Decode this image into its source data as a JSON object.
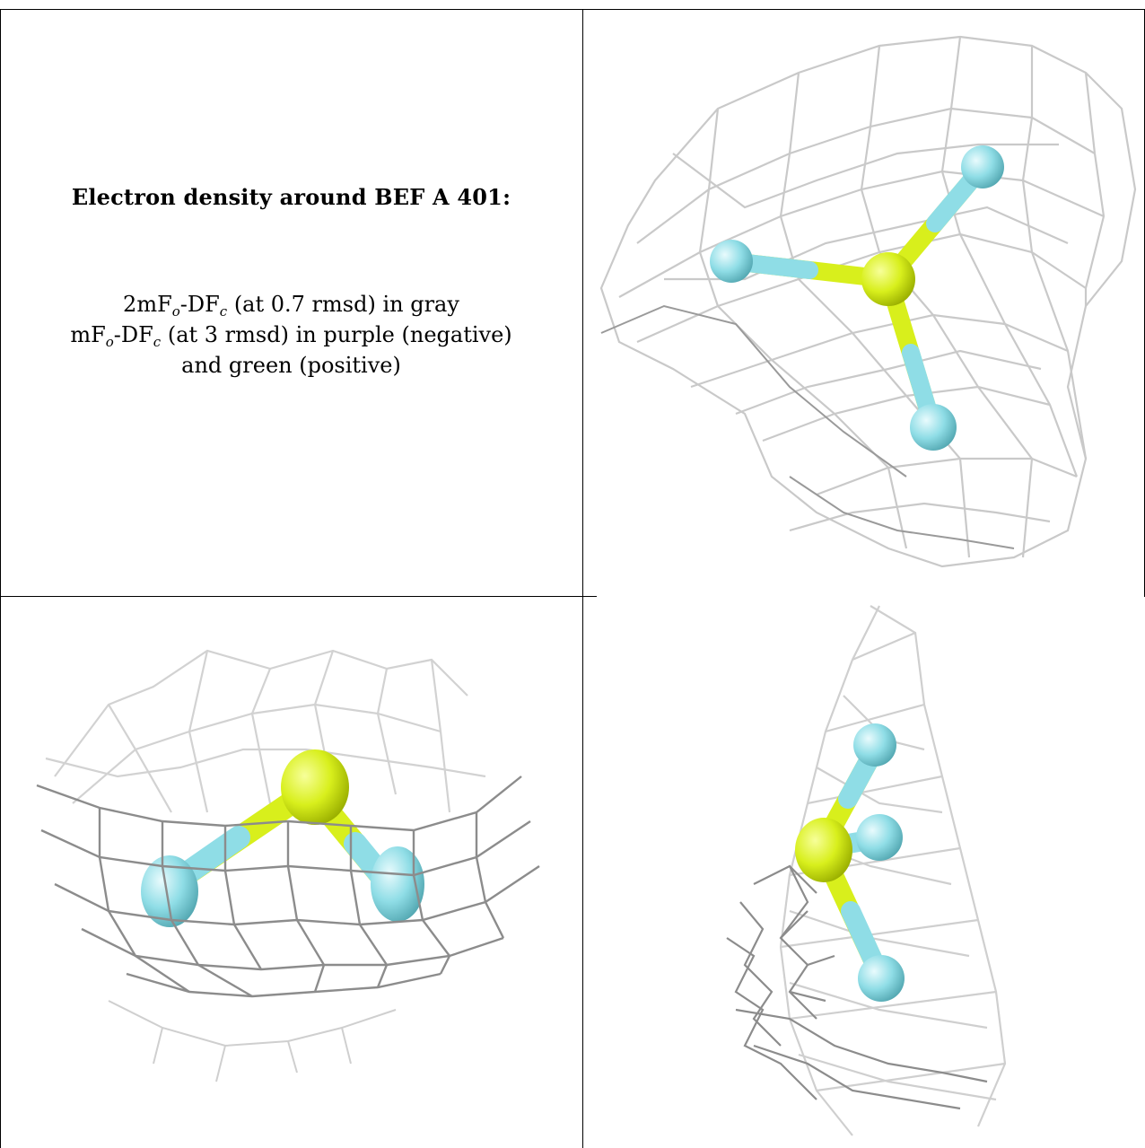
{
  "caption": {
    "title": "Electron density around BEF A 401:",
    "line1": {
      "prefix": "2mF",
      "sub1": "o",
      "middle": "-DF",
      "sub2": "c",
      "suffix": " (at 0.7 rmsd) in gray"
    },
    "line2": {
      "prefix": "mF",
      "sub1": "o",
      "middle": "-DF",
      "sub2": "c",
      "suffix": " (at 3 rmsd) in purple (negative)"
    },
    "line3": "and green (positive)"
  },
  "colors": {
    "mesh_light": "#c9c9c9",
    "mesh_dark": "#8a8a8a",
    "beryllium": "#d8ef1c",
    "fluorine": "#8fdde6"
  },
  "panels": [
    {
      "name": "view-top-right",
      "molecule": "BeF3",
      "atoms": [
        "Be",
        "F",
        "F",
        "F"
      ]
    },
    {
      "name": "view-bottom-left",
      "molecule": "BeF3",
      "atoms": [
        "Be",
        "F",
        "F"
      ]
    },
    {
      "name": "view-bottom-right",
      "molecule": "BeF3",
      "atoms": [
        "Be",
        "F",
        "F",
        "F"
      ]
    }
  ]
}
